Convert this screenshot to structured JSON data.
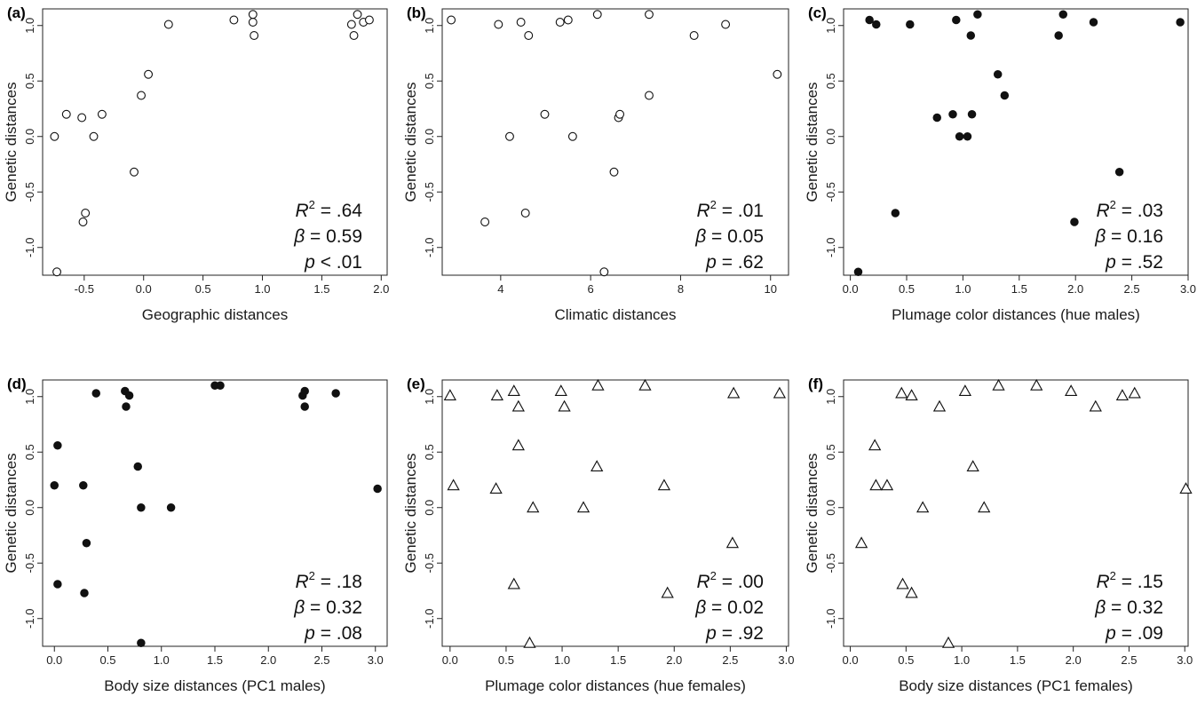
{
  "y_axis_label": "Genetic distances",
  "chart_data": [
    {
      "type": "scatter",
      "panel": "(a)",
      "xlabel": "Geographic distances",
      "ylabel": "Genetic distances",
      "marker": "open-circle",
      "marker_color": "#ffffff",
      "marker_stroke": "#111111",
      "xlim": [
        -0.85,
        2.05
      ],
      "ylim": [
        -1.25,
        1.15
      ],
      "xticks": [
        -0.5,
        0.0,
        0.5,
        1.0,
        1.5,
        2.0
      ],
      "xtick_labels": [
        "-0.5",
        "0.0",
        "0.5",
        "1.0",
        "1.5",
        "2.0"
      ],
      "yticks": [
        -1.0,
        -0.5,
        0.0,
        0.5,
        1.0
      ],
      "ytick_labels": [
        "-1.0",
        "-0.5",
        "0.0",
        "0.5",
        "1.0"
      ],
      "stats": {
        "r2": ".64",
        "beta": "0.59",
        "p_op": "<",
        "p": ".01"
      },
      "x": [
        -0.75,
        -0.65,
        -0.52,
        -0.42,
        -0.35,
        -0.73,
        -0.51,
        -0.49,
        -0.08,
        -0.02,
        0.04,
        0.21,
        0.76,
        0.92,
        0.92,
        0.93,
        1.75,
        1.77,
        1.8,
        1.85,
        1.9
      ],
      "y": [
        0.0,
        0.2,
        0.17,
        0.0,
        0.2,
        -1.22,
        -0.77,
        -0.69,
        -0.32,
        0.37,
        0.56,
        1.01,
        1.05,
        1.03,
        1.1,
        0.91,
        1.01,
        0.91,
        1.1,
        1.03,
        1.05
      ]
    },
    {
      "type": "scatter",
      "panel": "(b)",
      "xlabel": "Climatic distances",
      "ylabel": "Genetic distances",
      "marker": "open-circle",
      "marker_color": "#ffffff",
      "marker_stroke": "#111111",
      "xlim": [
        2.7,
        10.4
      ],
      "ylim": [
        -1.25,
        1.15
      ],
      "xticks": [
        4,
        6,
        8,
        10
      ],
      "xtick_labels": [
        "4",
        "6",
        "8",
        "10"
      ],
      "yticks": [
        -1.0,
        -0.5,
        0.0,
        0.5,
        1.0
      ],
      "ytick_labels": [
        "-1.0",
        "-0.5",
        "0.0",
        "0.5",
        "1.0"
      ],
      "stats": {
        "r2": ".01",
        "beta": "0.05",
        "p_op": "=",
        "p": ".62"
      },
      "x": [
        2.9,
        3.65,
        3.95,
        4.2,
        4.45,
        4.55,
        4.62,
        4.98,
        5.32,
        5.5,
        5.6,
        6.15,
        6.3,
        6.52,
        6.62,
        6.65,
        7.3,
        7.3,
        8.3,
        9.0,
        10.15
      ],
      "y": [
        1.05,
        -0.77,
        1.01,
        0.0,
        1.03,
        -0.69,
        0.91,
        0.2,
        1.03,
        1.05,
        0.0,
        1.1,
        -1.22,
        -0.32,
        0.17,
        0.2,
        1.1,
        0.37,
        0.91,
        1.01,
        0.56
      ]
    },
    {
      "type": "scatter",
      "panel": "(c)",
      "xlabel": "Plumage color distances (hue males)",
      "ylabel": "Genetic distances",
      "marker": "filled-circle",
      "marker_color": "#111111",
      "marker_stroke": "#111111",
      "xlim": [
        -0.06,
        3.0
      ],
      "ylim": [
        -1.25,
        1.15
      ],
      "xticks": [
        0.0,
        0.5,
        1.0,
        1.5,
        2.0,
        2.5,
        3.0
      ],
      "xtick_labels": [
        "0.0",
        "0.5",
        "1.0",
        "1.5",
        "2.0",
        "2.5",
        "3.0"
      ],
      "yticks": [
        -1.0,
        -0.5,
        0.0,
        0.5,
        1.0
      ],
      "ytick_labels": [
        "-1.0",
        "-0.5",
        "0.0",
        "0.5",
        "1.0"
      ],
      "stats": {
        "r2": ".03",
        "beta": "0.16",
        "p_op": "=",
        "p": ".52"
      },
      "x": [
        0.07,
        0.17,
        0.23,
        0.4,
        0.53,
        0.77,
        0.91,
        0.94,
        0.97,
        1.04,
        1.07,
        1.08,
        1.13,
        1.31,
        1.37,
        1.85,
        1.89,
        1.99,
        2.16,
        2.39,
        2.93
      ],
      "y": [
        -1.22,
        1.05,
        1.01,
        -0.69,
        1.01,
        0.17,
        0.2,
        1.05,
        0.0,
        0.0,
        0.91,
        0.2,
        1.1,
        0.56,
        0.37,
        0.91,
        1.1,
        -0.77,
        1.03,
        -0.32,
        1.03
      ]
    },
    {
      "type": "scatter",
      "panel": "(d)",
      "xlabel": "Body size distances (PC1 males)",
      "ylabel": "Genetic distances",
      "marker": "filled-circle",
      "marker_color": "#111111",
      "marker_stroke": "#111111",
      "xlim": [
        -0.11,
        3.11
      ],
      "ylim": [
        -1.25,
        1.15
      ],
      "xticks": [
        0.0,
        0.5,
        1.0,
        1.5,
        2.0,
        2.5,
        3.0
      ],
      "xtick_labels": [
        "0.0",
        "0.5",
        "1.0",
        "1.5",
        "2.0",
        "2.5",
        "3.0"
      ],
      "yticks": [
        -1.0,
        -0.5,
        0.0,
        0.5,
        1.0
      ],
      "ytick_labels": [
        "-1.0",
        "-0.5",
        "0.0",
        "0.5",
        "1.0"
      ],
      "stats": {
        "r2": ".18",
        "beta": "0.32",
        "p_op": "=",
        "p": ".08"
      },
      "x": [
        0.0,
        0.03,
        0.03,
        0.27,
        0.28,
        0.3,
        0.39,
        0.66,
        0.67,
        0.7,
        0.78,
        0.81,
        0.81,
        1.09,
        1.5,
        1.55,
        2.32,
        2.34,
        2.34,
        2.63,
        3.02
      ],
      "y": [
        0.2,
        0.56,
        -0.69,
        0.2,
        -0.77,
        -0.32,
        1.03,
        1.05,
        0.91,
        1.01,
        0.37,
        0.0,
        -1.22,
        0.0,
        1.1,
        1.1,
        1.01,
        1.05,
        0.91,
        1.03,
        0.17
      ]
    },
    {
      "type": "scatter",
      "panel": "(e)",
      "xlabel": "Plumage color distances (hue females)",
      "ylabel": "Genetic distances",
      "marker": "open-triangle",
      "marker_color": "#ffffff",
      "marker_stroke": "#111111",
      "xlim": [
        -0.07,
        3.02
      ],
      "ylim": [
        -1.25,
        1.15
      ],
      "xticks": [
        0.0,
        0.5,
        1.0,
        1.5,
        2.0,
        2.5,
        3.0
      ],
      "xtick_labels": [
        "0.0",
        "0.5",
        "1.0",
        "1.5",
        "2.0",
        "2.5",
        "3.0"
      ],
      "yticks": [
        -1.0,
        -0.5,
        0.0,
        0.5,
        1.0
      ],
      "ytick_labels": [
        "-1.0",
        "-0.5",
        "0.0",
        "0.5",
        "1.0"
      ],
      "stats": {
        "r2": ".00",
        "beta": "0.02",
        "p_op": "=",
        "p": ".92"
      },
      "x": [
        0.0,
        0.03,
        0.41,
        0.42,
        0.57,
        0.57,
        0.61,
        0.61,
        0.71,
        0.74,
        0.99,
        1.02,
        1.19,
        1.31,
        1.32,
        1.74,
        1.91,
        1.94,
        2.52,
        2.53,
        2.94
      ],
      "y": [
        1.01,
        0.2,
        0.17,
        1.01,
        1.05,
        -0.69,
        0.91,
        0.56,
        -1.22,
        0.0,
        1.05,
        0.91,
        0.0,
        0.37,
        1.1,
        1.1,
        0.2,
        -0.77,
        -0.32,
        1.03,
        1.03
      ]
    },
    {
      "type": "scatter",
      "panel": "(f)",
      "xlabel": "Body size distances (PC1 females)",
      "ylabel": "Genetic distances",
      "marker": "open-triangle",
      "marker_color": "#ffffff",
      "marker_stroke": "#111111",
      "xlim": [
        -0.06,
        3.03
      ],
      "ylim": [
        -1.25,
        1.15
      ],
      "xticks": [
        0.0,
        0.5,
        1.0,
        1.5,
        2.0,
        2.5,
        3.0
      ],
      "xtick_labels": [
        "0.0",
        "0.5",
        "1.0",
        "1.5",
        "2.0",
        "2.5",
        "3.0"
      ],
      "yticks": [
        -1.0,
        -0.5,
        0.0,
        0.5,
        1.0
      ],
      "ytick_labels": [
        "-1.0",
        "-0.5",
        "0.0",
        "0.5",
        "1.0"
      ],
      "stats": {
        "r2": ".15",
        "beta": "0.32",
        "p_op": "=",
        "p": ".09"
      },
      "x": [
        0.1,
        0.22,
        0.23,
        0.33,
        0.46,
        0.47,
        0.55,
        0.55,
        0.65,
        0.8,
        0.88,
        1.03,
        1.1,
        1.2,
        1.33,
        1.67,
        1.98,
        2.2,
        2.44,
        2.55,
        3.01
      ],
      "y": [
        -0.32,
        0.56,
        0.2,
        0.2,
        1.03,
        -0.69,
        1.01,
        -0.77,
        0.0,
        0.91,
        -1.22,
        1.05,
        0.37,
        0.0,
        1.1,
        1.1,
        1.05,
        0.91,
        1.01,
        1.03,
        0.17
      ]
    }
  ]
}
